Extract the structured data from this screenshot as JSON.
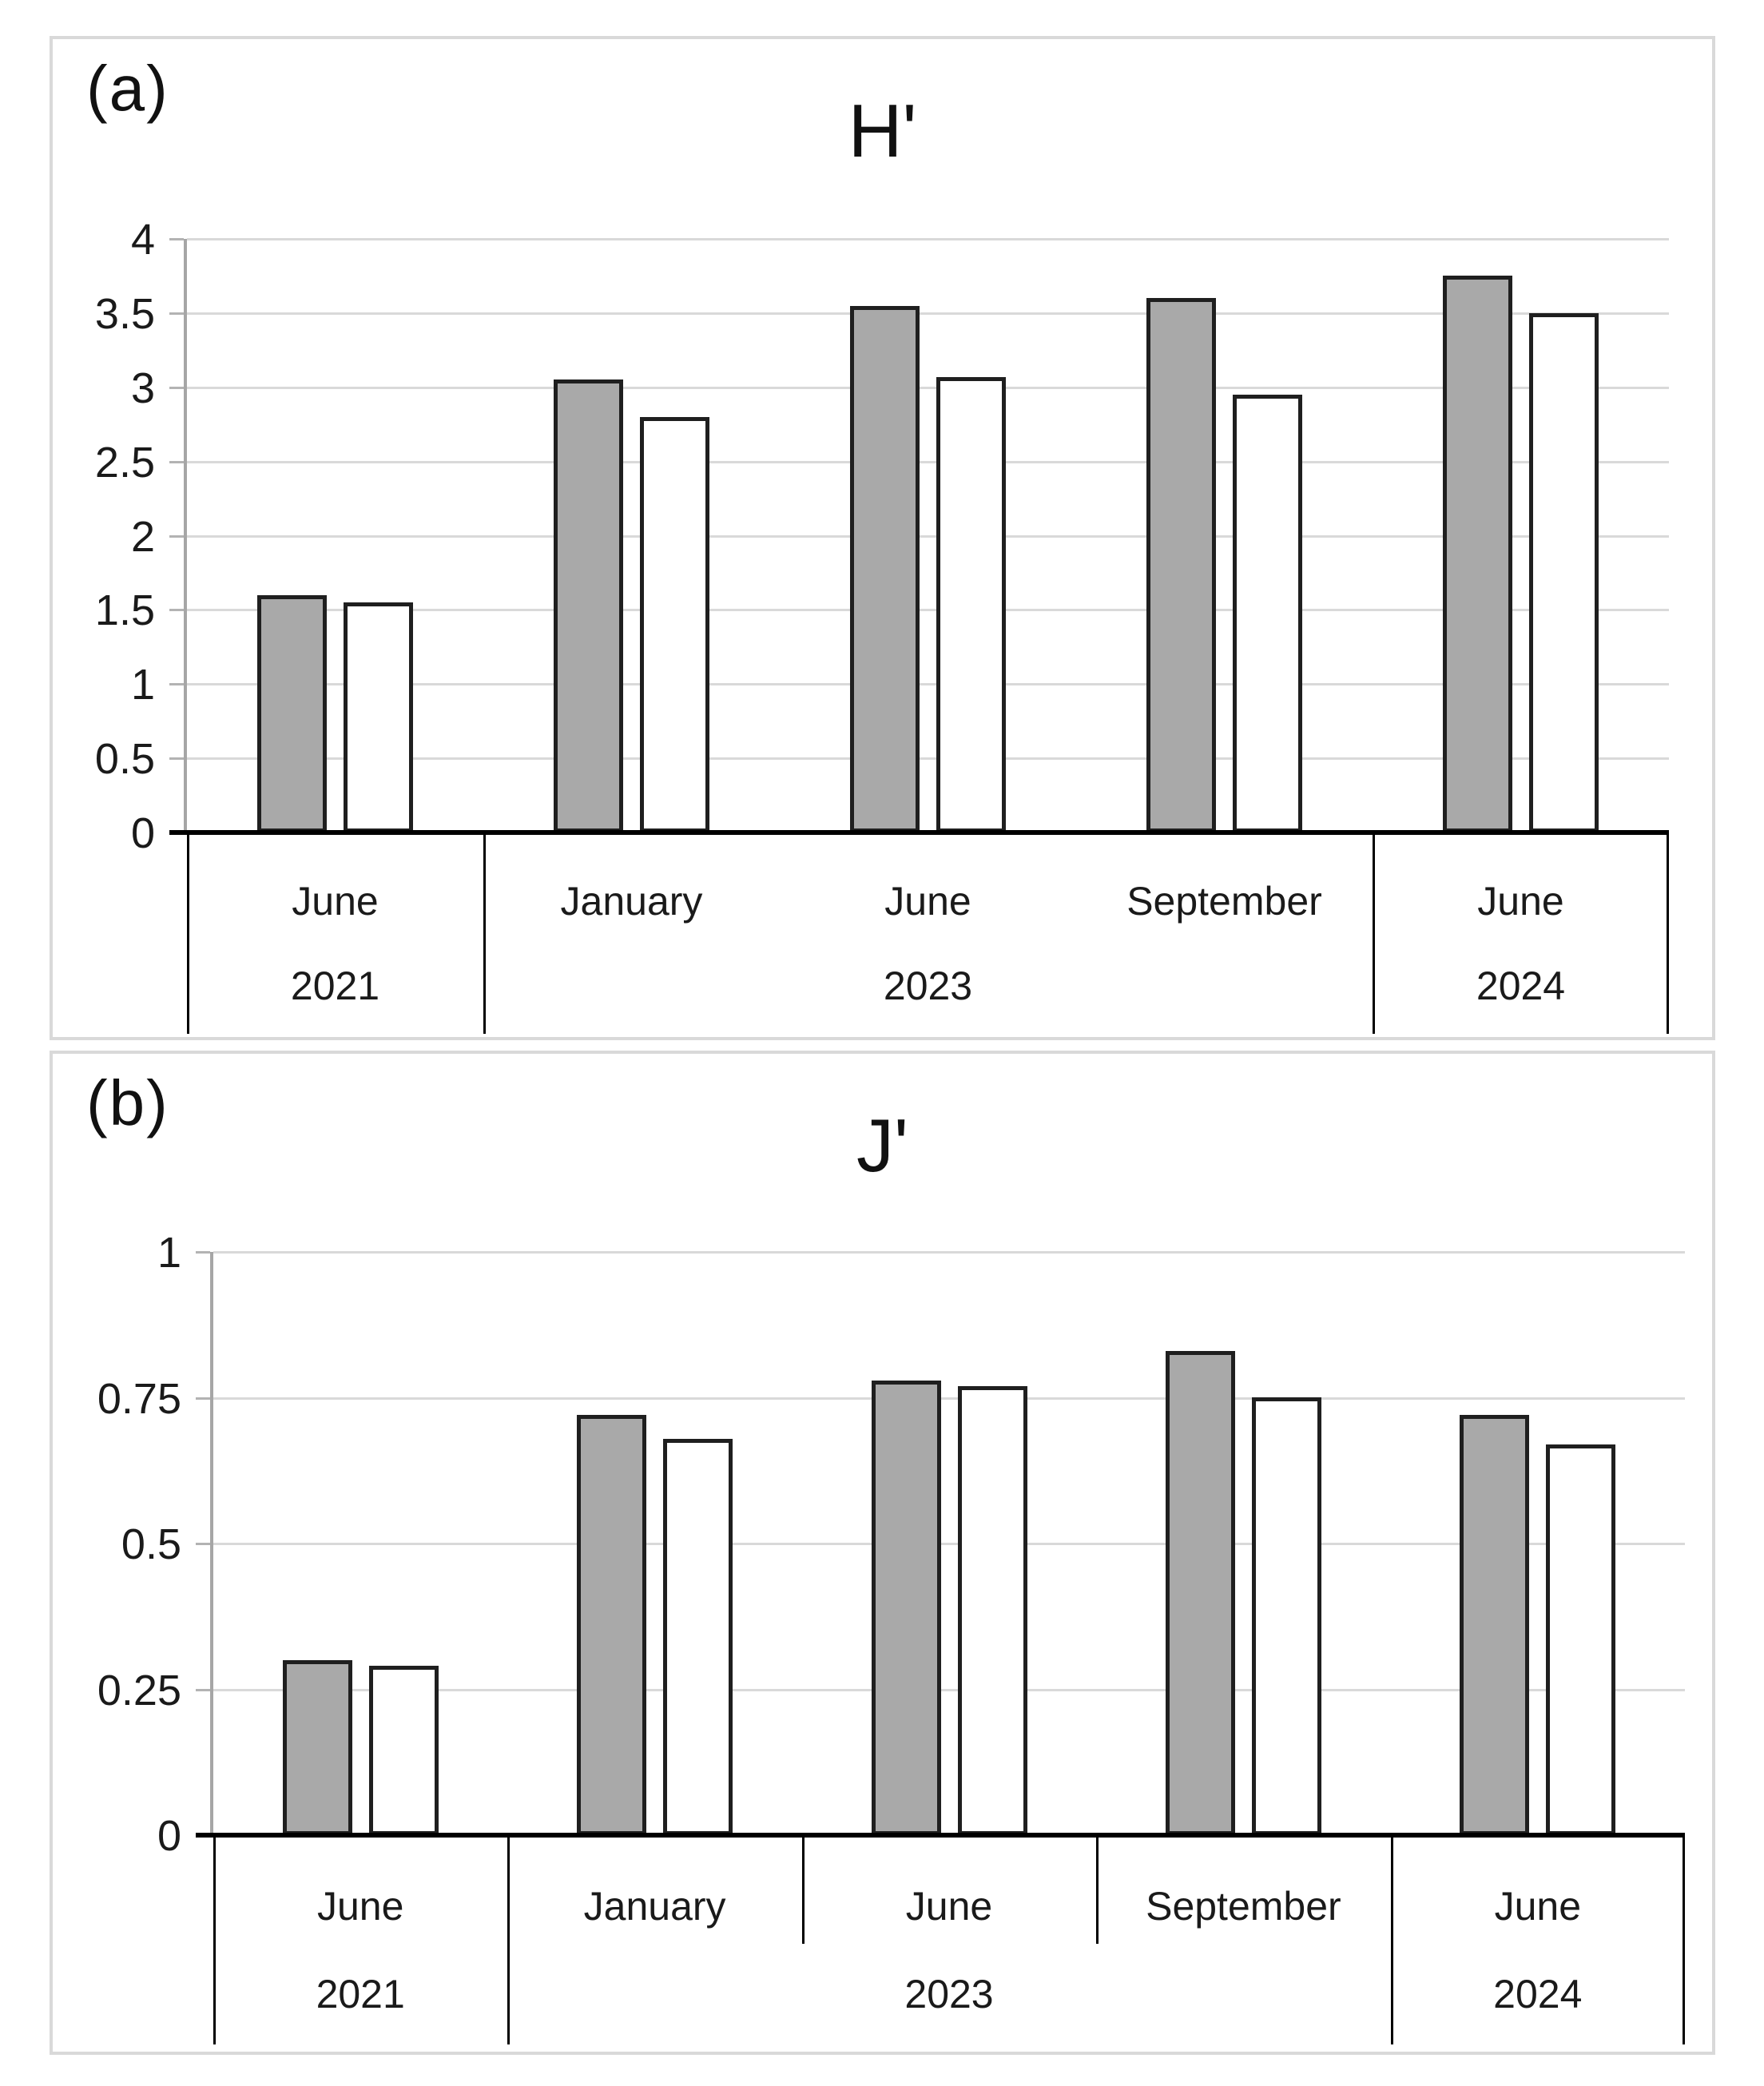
{
  "figure": {
    "background": "#ffffff",
    "panel_border_color": "#d9d9d9",
    "text_color": "#1a1a1a",
    "panels": [
      {
        "corner_label": "(a)",
        "title": "H'"
      },
      {
        "corner_label": "(b)",
        "title": "J'"
      }
    ]
  },
  "chart_data": [
    {
      "type": "bar",
      "panel_label": "(a)",
      "title": "H'",
      "xlabel": "",
      "ylabel": "",
      "ylim": [
        0,
        4
      ],
      "y_ticks": [
        4,
        3.5,
        3,
        2.5,
        2,
        1.5,
        1,
        0.5,
        0
      ],
      "y_tick_labels": [
        "4",
        "3.5",
        "3",
        "2.5",
        "2",
        "1.5",
        "1",
        "0.5",
        "0"
      ],
      "grid": true,
      "legend_position": "none",
      "month_dividers": false,
      "categories": [
        "June",
        "January",
        "June",
        "September",
        "June"
      ],
      "year_groups": [
        {
          "label": "2021",
          "span": 1
        },
        {
          "label": "2023",
          "span": 3
        },
        {
          "label": "2024",
          "span": 1
        }
      ],
      "series": [
        {
          "name": "gray-bars",
          "fill": "#a9a9a9",
          "border": "#1f1f1f",
          "values": [
            1.6,
            3.05,
            3.55,
            3.6,
            3.75
          ]
        },
        {
          "name": "white-bars",
          "fill": "#ffffff",
          "border": "#1f1f1f",
          "values": [
            1.55,
            2.8,
            3.07,
            2.95,
            3.5
          ]
        }
      ],
      "colors": {
        "gridline": "#d9d9d9",
        "y_axis": "#a6a6a6",
        "x_axis": "#000000",
        "band_line": "#000000"
      }
    },
    {
      "type": "bar",
      "panel_label": "(b)",
      "title": "J'",
      "xlabel": "",
      "ylabel": "",
      "ylim": [
        0,
        1
      ],
      "y_ticks": [
        1,
        0.75,
        0.5,
        0.25,
        0
      ],
      "y_tick_labels": [
        "1",
        "0.75",
        "0.5",
        "0.25",
        "0"
      ],
      "grid": true,
      "legend_position": "none",
      "month_dividers": true,
      "categories": [
        "June",
        "January",
        "June",
        "September",
        "June"
      ],
      "year_groups": [
        {
          "label": "2021",
          "span": 1
        },
        {
          "label": "2023",
          "span": 3
        },
        {
          "label": "2024",
          "span": 1
        }
      ],
      "series": [
        {
          "name": "gray-bars",
          "fill": "#a9a9a9",
          "border": "#1f1f1f",
          "values": [
            0.3,
            0.72,
            0.78,
            0.83,
            0.72
          ]
        },
        {
          "name": "white-bars",
          "fill": "#ffffff",
          "border": "#1f1f1f",
          "values": [
            0.29,
            0.68,
            0.77,
            0.75,
            0.67
          ]
        }
      ],
      "colors": {
        "gridline": "#d9d9d9",
        "y_axis": "#a6a6a6",
        "x_axis": "#000000",
        "band_line": "#000000"
      }
    }
  ]
}
